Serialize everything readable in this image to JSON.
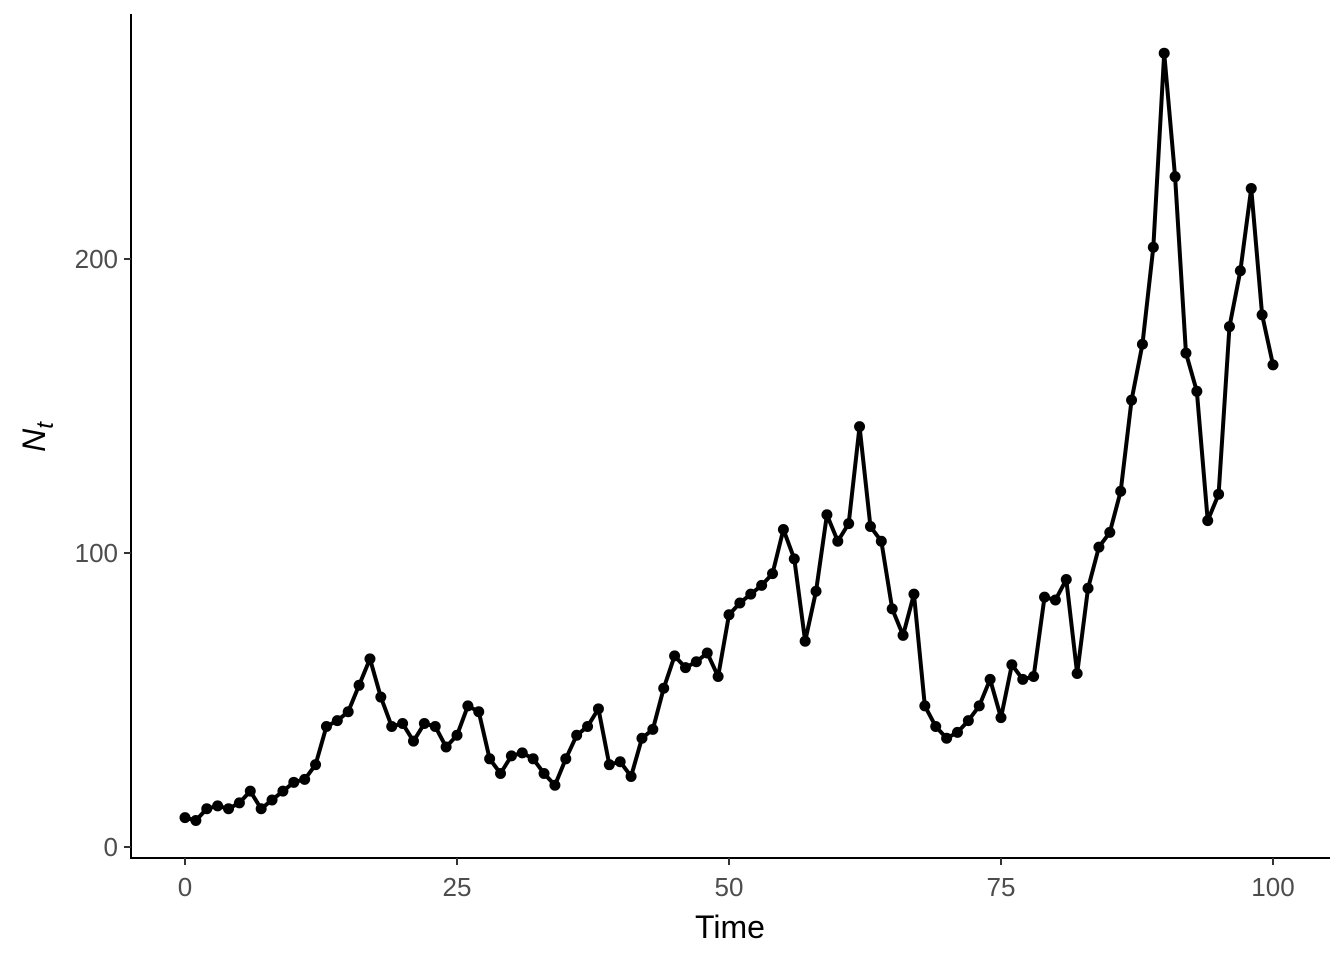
{
  "chart_data": {
    "type": "line",
    "markers": true,
    "xlabel": "Time",
    "ylabel_main": "N",
    "ylabel_subscript": "t",
    "xlim": [
      0,
      100
    ],
    "ylim": [
      0,
      270
    ],
    "xticks": [
      0,
      25,
      50,
      75,
      100
    ],
    "yticks": [
      0,
      100,
      200
    ],
    "grid": false,
    "line_color": "#000000",
    "x": [
      0,
      1,
      2,
      3,
      4,
      5,
      6,
      7,
      8,
      9,
      10,
      11,
      12,
      13,
      14,
      15,
      16,
      17,
      18,
      19,
      20,
      21,
      22,
      23,
      24,
      25,
      26,
      27,
      28,
      29,
      30,
      31,
      32,
      33,
      34,
      35,
      36,
      37,
      38,
      39,
      40,
      41,
      42,
      43,
      44,
      45,
      46,
      47,
      48,
      49,
      50,
      51,
      52,
      53,
      54,
      55,
      56,
      57,
      58,
      59,
      60,
      61,
      62,
      63,
      64,
      65,
      66,
      67,
      68,
      69,
      70,
      71,
      72,
      73,
      74,
      75,
      76,
      77,
      78,
      79,
      80,
      81,
      82,
      83,
      84,
      85,
      86,
      87,
      88,
      89,
      90,
      91,
      92,
      93,
      94,
      95,
      96,
      97,
      98,
      99,
      100
    ],
    "y": [
      10,
      9,
      13,
      14,
      13,
      15,
      19,
      13,
      16,
      19,
      22,
      23,
      28,
      41,
      43,
      46,
      55,
      64,
      51,
      41,
      42,
      36,
      42,
      41,
      34,
      38,
      48,
      46,
      30,
      25,
      31,
      32,
      30,
      25,
      21,
      30,
      38,
      41,
      47,
      28,
      29,
      24,
      37,
      40,
      54,
      65,
      61,
      63,
      66,
      58,
      79,
      83,
      86,
      89,
      93,
      108,
      98,
      70,
      87,
      113,
      104,
      110,
      143,
      109,
      104,
      81,
      72,
      86,
      48,
      41,
      37,
      39,
      43,
      48,
      57,
      44,
      62,
      57,
      58,
      85,
      84,
      91,
      59,
      88,
      102,
      107,
      121,
      152,
      171,
      204,
      270,
      228,
      168,
      155,
      111,
      120,
      177,
      196,
      224,
      181,
      164
    ]
  }
}
